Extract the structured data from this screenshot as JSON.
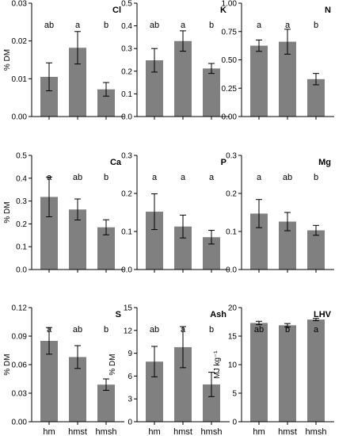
{
  "chart_data": [
    {
      "type": "bar",
      "title": "Cl",
      "ylabel": "% DM",
      "categories": [
        "hm",
        "hmst",
        "hmsh"
      ],
      "values": [
        0.0105,
        0.0182,
        0.0072
      ],
      "errors": [
        0.0037,
        0.0043,
        0.0018
      ],
      "letters": [
        "ab",
        "a",
        "b"
      ],
      "ylim": [
        0,
        0.03
      ],
      "yticks": [
        0.0,
        0.01,
        0.02,
        0.03
      ],
      "ytick_labels": [
        "0.00",
        "0.01",
        "0.02",
        "0.03"
      ],
      "bar_color": "#808080"
    },
    {
      "type": "bar",
      "title": "K",
      "ylabel": "",
      "categories": [
        "hm",
        "hmst",
        "hmsh"
      ],
      "values": [
        0.248,
        0.333,
        0.212
      ],
      "errors": [
        0.052,
        0.045,
        0.022
      ],
      "letters": [
        "ab",
        "a",
        "b"
      ],
      "ylim": [
        0,
        0.5
      ],
      "yticks": [
        0.0,
        0.1,
        0.2,
        0.3,
        0.4,
        0.5
      ],
      "ytick_labels": [
        "0.0",
        "0.1",
        "0.2",
        "0.3",
        "0.4",
        "0.5"
      ],
      "bar_color": "#808080"
    },
    {
      "type": "bar",
      "title": "N",
      "ylabel": "",
      "categories": [
        "hm",
        "hmst",
        "hmsh"
      ],
      "values": [
        0.625,
        0.66,
        0.33
      ],
      "errors": [
        0.05,
        0.11,
        0.05
      ],
      "letters": [
        "a",
        "a",
        "b"
      ],
      "ylim": [
        0,
        1.0
      ],
      "yticks": [
        0.0,
        0.25,
        0.5,
        0.75,
        1.0
      ],
      "ytick_labels": [
        "0.00",
        "0.25",
        "0.50",
        "0.75",
        "1.00"
      ],
      "bar_color": "#808080"
    },
    {
      "type": "bar",
      "title": "Ca",
      "ylabel": "% DM",
      "categories": [
        "hm",
        "hmst",
        "hmsh"
      ],
      "values": [
        0.318,
        0.263,
        0.185
      ],
      "errors": [
        0.087,
        0.046,
        0.033
      ],
      "letters": [
        "a",
        "ab",
        "b"
      ],
      "ylim": [
        0,
        0.5
      ],
      "yticks": [
        0.0,
        0.1,
        0.2,
        0.3,
        0.4,
        0.5
      ],
      "ytick_labels": [
        "0.0",
        "0.1",
        "0.2",
        "0.3",
        "0.4",
        "0.5"
      ],
      "bar_color": "#808080"
    },
    {
      "type": "bar",
      "title": "P",
      "ylabel": "",
      "categories": [
        "hm",
        "hmst",
        "hmsh"
      ],
      "values": [
        0.152,
        0.113,
        0.085
      ],
      "errors": [
        0.047,
        0.03,
        0.018
      ],
      "letters": [
        "a",
        "a",
        "a"
      ],
      "ylim": [
        0,
        0.3
      ],
      "yticks": [
        0.0,
        0.1,
        0.2,
        0.3
      ],
      "ytick_labels": [
        "0.0",
        "0.1",
        "0.2",
        "0.3"
      ],
      "bar_color": "#808080"
    },
    {
      "type": "bar",
      "title": "Mg",
      "ylabel": "",
      "categories": [
        "hm",
        "hmst",
        "hmsh"
      ],
      "values": [
        0.147,
        0.126,
        0.103
      ],
      "errors": [
        0.037,
        0.024,
        0.013
      ],
      "letters": [
        "a",
        "ab",
        "b"
      ],
      "ylim": [
        0,
        0.3
      ],
      "yticks": [
        0.0,
        0.1,
        0.2,
        0.3
      ],
      "ytick_labels": [
        "0.0",
        "0.1",
        "0.2",
        "0.3"
      ],
      "bar_color": "#808080"
    },
    {
      "type": "bar",
      "title": "S",
      "ylabel": "% DM",
      "categories": [
        "hm",
        "hmst",
        "hmsh"
      ],
      "values": [
        0.085,
        0.068,
        0.039
      ],
      "errors": [
        0.014,
        0.012,
        0.006
      ],
      "letters": [
        "a",
        "ab",
        "b"
      ],
      "ylim": [
        0,
        0.12
      ],
      "yticks": [
        0.0,
        0.03,
        0.06,
        0.09,
        0.12
      ],
      "ytick_labels": [
        "0.00",
        "0.03",
        "0.06",
        "0.09",
        "0.12"
      ],
      "bar_color": "#808080"
    },
    {
      "type": "bar",
      "title": "Ash",
      "ylabel": "% DM",
      "categories": [
        "hm",
        "hmst",
        "hmsh"
      ],
      "values": [
        7.9,
        9.8,
        4.9
      ],
      "errors": [
        2.0,
        2.7,
        1.6
      ],
      "letters": [
        "ab",
        "a",
        "b"
      ],
      "ylim": [
        0,
        15
      ],
      "yticks": [
        0,
        3,
        6,
        9,
        12,
        15
      ],
      "ytick_labels": [
        "0",
        "3",
        "6",
        "9",
        "12",
        "15"
      ],
      "bar_color": "#808080"
    },
    {
      "type": "bar",
      "title": "LHV",
      "ylabel": "MJ kg⁻¹",
      "categories": [
        "hm",
        "hmst",
        "hmsh"
      ],
      "values": [
        17.3,
        16.9,
        17.9
      ],
      "errors": [
        0.3,
        0.3,
        0.2
      ],
      "letters": [
        "ab",
        "b",
        "a"
      ],
      "ylim": [
        0,
        20
      ],
      "yticks": [
        0,
        5,
        10,
        15,
        20
      ],
      "ytick_labels": [
        "0",
        "5",
        "10",
        "15",
        "20"
      ],
      "bar_color": "#808080"
    }
  ]
}
